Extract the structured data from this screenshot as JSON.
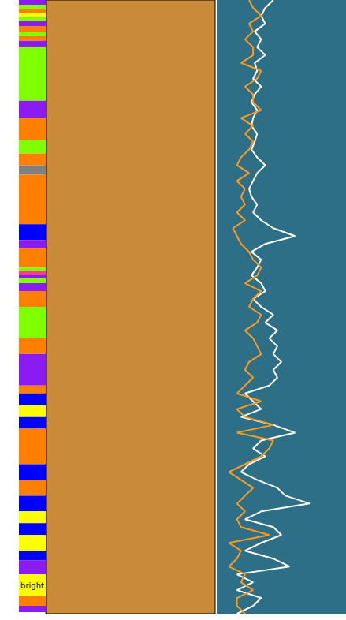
{
  "chart_data": {
    "type": "well_log",
    "tick_labels": false,
    "ylim": [
      0,
      780
    ],
    "xlim": [
      0,
      160
    ],
    "facies": {
      "tops": [
        0,
        6,
        12,
        17,
        21,
        27,
        33,
        40,
        46,
        52,
        60,
        128,
        150,
        178,
        195,
        210,
        222,
        285,
        305,
        315,
        340,
        345,
        349,
        354,
        360,
        370,
        390,
        430,
        450,
        490,
        500,
        515,
        530,
        545,
        590,
        610,
        630,
        650,
        665,
        680,
        700,
        712,
        730,
        758,
        770
      ],
      "bases": [
        6,
        12,
        17,
        21,
        27,
        33,
        40,
        46,
        52,
        60,
        128,
        150,
        178,
        195,
        210,
        222,
        285,
        305,
        315,
        340,
        345,
        349,
        354,
        360,
        370,
        390,
        430,
        450,
        490,
        500,
        515,
        530,
        545,
        590,
        610,
        630,
        650,
        665,
        680,
        700,
        712,
        730,
        758,
        770,
        778
      ],
      "colors": [
        "#8a1cf0",
        "#80ff00",
        "#ff7f00",
        "#ffff00",
        "#80ff00",
        "#8a1cf0",
        "#ff7f00",
        "#80ff00",
        "#ff7f00",
        "#8a1cf0",
        "#80ff00",
        "#8a1cf0",
        "#ff7f00",
        "#80ff00",
        "#ff7f00",
        "#808080",
        "#ff7f00",
        "#0000ff",
        "#8a1cf0",
        "#ff7f00",
        "#80ff00",
        "#ff3c8c",
        "#8a1cf0",
        "#80ff00",
        "#8a1cf0",
        "#ff7f00",
        "#80ff00",
        "#ff7f00",
        "#8a1cf0",
        "#ff7f00",
        "#0000ff",
        "#ffff00",
        "#0000ff",
        "#ff7f00",
        "#0000ff",
        "#ff7f00",
        "#0000ff",
        "#ffff00",
        "#0000ff",
        "#ffff00",
        "#0000ff",
        "#8a1cf0",
        "#ffff00",
        "#ff7f00",
        "#8a1cf0"
      ],
      "labels": [
        null,
        null,
        null,
        null,
        null,
        null,
        null,
        null,
        null,
        null,
        null,
        null,
        null,
        null,
        null,
        null,
        null,
        null,
        null,
        null,
        null,
        null,
        null,
        null,
        null,
        null,
        null,
        null,
        null,
        null,
        null,
        null,
        null,
        null,
        null,
        null,
        null,
        null,
        null,
        null,
        null,
        null,
        "bright",
        null,
        null
      ]
    },
    "depth": [
      0,
      10,
      20,
      30,
      40,
      50,
      60,
      70,
      80,
      90,
      100,
      110,
      120,
      130,
      140,
      150,
      160,
      170,
      180,
      190,
      200,
      210,
      220,
      230,
      240,
      250,
      260,
      270,
      280,
      290,
      300,
      310,
      320,
      330,
      340,
      350,
      360,
      370,
      380,
      390,
      400,
      410,
      420,
      430,
      440,
      450,
      460,
      470,
      480,
      490,
      500,
      510,
      520,
      530,
      540,
      550,
      560,
      570,
      580,
      590,
      600,
      610,
      620,
      630,
      640,
      650,
      660,
      670,
      680,
      690,
      700,
      710,
      720,
      730,
      740,
      750,
      760,
      770,
      780
    ],
    "series": [
      {
        "color": "#ffffff",
        "values": [
          70,
          60,
          55,
          60,
          47,
          55,
          50,
          60,
          47,
          50,
          45,
          55,
          47,
          43,
          50,
          45,
          43,
          50,
          47,
          43,
          50,
          60,
          50,
          45,
          40,
          43,
          50,
          45,
          55,
          70,
          97,
          60,
          43,
          55,
          50,
          43,
          55,
          60,
          45,
          55,
          70,
          60,
          75,
          65,
          75,
          70,
          80,
          70,
          75,
          65,
          35,
          45,
          55,
          30,
          70,
          97,
          55,
          45,
          60,
          40,
          30,
          50,
          75,
          85,
          115,
          55,
          35,
          70,
          80,
          55,
          35,
          70,
          90,
          25,
          45,
          25,
          55,
          45,
          25
        ]
      },
      {
        "color": "#ff9a1f",
        "values": [
          40,
          45,
          55,
          40,
          45,
          35,
          45,
          45,
          30,
          55,
          50,
          35,
          45,
          45,
          55,
          30,
          45,
          35,
          45,
          40,
          30,
          25,
          40,
          25,
          35,
          30,
          35,
          25,
          35,
          20,
          25,
          30,
          40,
          45,
          55,
          50,
          35,
          55,
          45,
          40,
          55,
          50,
          35,
          45,
          50,
          55,
          40,
          35,
          45,
          35,
          25,
          55,
          25,
          35,
          70,
          25,
          70,
          65,
          55,
          35,
          15,
          30,
          45,
          35,
          25,
          35,
          25,
          30,
          65,
          15,
          30,
          25,
          15,
          35,
          30,
          45,
          25,
          25,
          35
        ]
      }
    ]
  }
}
